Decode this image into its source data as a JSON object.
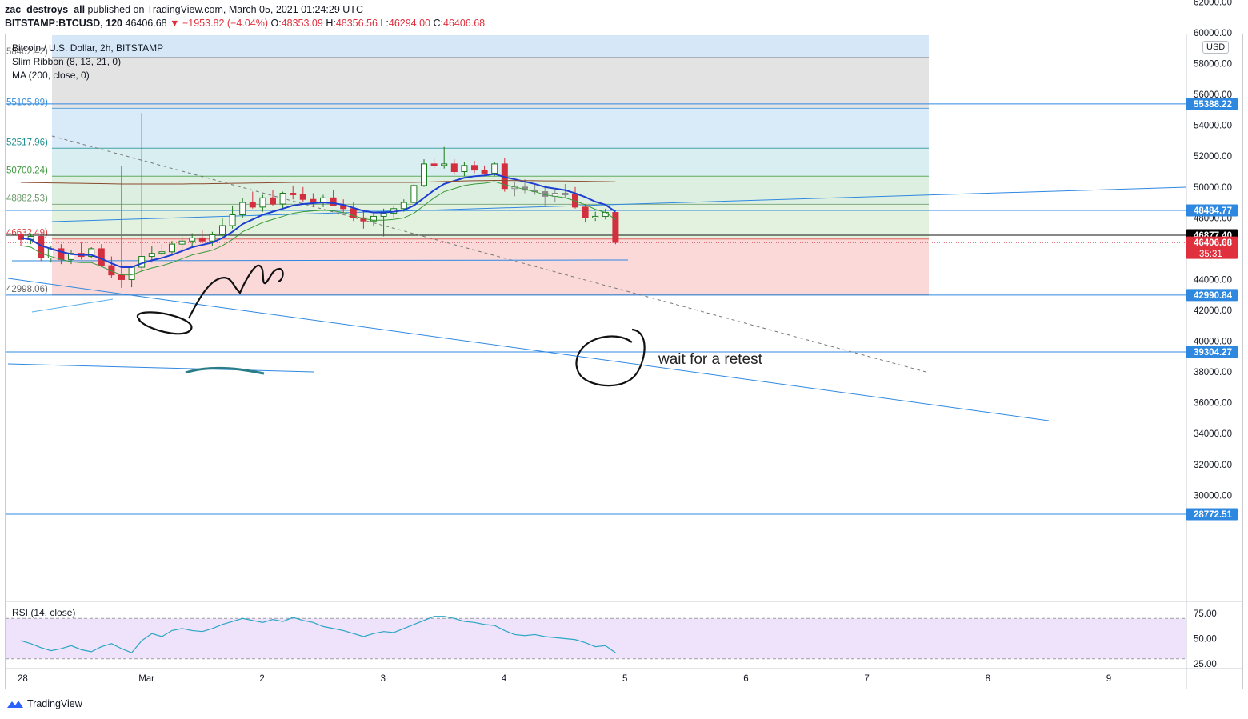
{
  "header": {
    "author": "zac_destroys_all",
    "published_text": "published on TradingView.com, March 05, 2021 01:24:29 UTC",
    "symbol_line": "BITSTAMP:BTCUSD, 120",
    "last": "46406.68",
    "change": "▼ −1953.82 (−4.04%)",
    "o_label": "O:",
    "o": "48353.09",
    "h_label": "H:",
    "h": "48356.56",
    "l_label": "L:",
    "l": "46294.00",
    "c_label": "C:",
    "c": "46406.68"
  },
  "legend": {
    "title": "Bitcoin / U.S. Dollar, 2h, BITSTAMP",
    "ribbon": "Slim Ribbon (8, 13, 21, 0)",
    "ma": "MA (200, close, 0)",
    "rsi": "RSI (14, close)"
  },
  "currency_button": "USD",
  "annotation": "wait for a retest",
  "footer": {
    "brand": "TradingView"
  },
  "colors": {
    "up": "#1e7a1e",
    "down": "#d32f3f",
    "neutral": "#8a8a8a",
    "trendline": "#2f88e0",
    "ribbon_fast": "#1c3fd1",
    "rsi": "#2aa7c4"
  },
  "chart_data": {
    "type": "candlestick",
    "yaxis": {
      "min": 27000,
      "max": 65000,
      "ticks": [
        {
          "v": 62000,
          "label": "62000.00"
        },
        {
          "v": 60000,
          "label": "60000.00"
        },
        {
          "v": 58000,
          "label": "58000.00"
        },
        {
          "v": 56000,
          "label": "56000.00"
        },
        {
          "v": 54000,
          "label": "54000.00"
        },
        {
          "v": 52000,
          "label": "52000.00"
        },
        {
          "v": 50000,
          "label": "50000.00"
        },
        {
          "v": 48000,
          "label": "48000.00"
        },
        {
          "v": 44000,
          "label": "44000.00"
        },
        {
          "v": 42000,
          "label": "42000.00"
        },
        {
          "v": 40000,
          "label": "40000.00"
        },
        {
          "v": 38000,
          "label": "38000.00"
        },
        {
          "v": 36000,
          "label": "36000.00"
        },
        {
          "v": 34000,
          "label": "34000.00"
        },
        {
          "v": 32000,
          "label": "32000.00"
        },
        {
          "v": 30000,
          "label": "30000.00"
        }
      ]
    },
    "xaxis": {
      "ticks": [
        {
          "t": 0,
          "label": "28"
        },
        {
          "t": 12,
          "label": "Mar"
        },
        {
          "t": 24,
          "label": "2"
        },
        {
          "t": 36,
          "label": "3"
        },
        {
          "t": 48,
          "label": "4"
        },
        {
          "t": 60,
          "label": "5"
        },
        {
          "t": 72,
          "label": "6"
        },
        {
          "t": 84,
          "label": "7"
        },
        {
          "t": 96,
          "label": "8"
        },
        {
          "t": 108,
          "label": "9"
        }
      ]
    },
    "price_tags": [
      {
        "v": 55388.22,
        "label": "55388.22",
        "kind": "line"
      },
      {
        "v": 48484.77,
        "label": "48484.77",
        "kind": "line"
      },
      {
        "v": 46877.4,
        "label": "46877.40",
        "kind": "dark"
      },
      {
        "v": 46406.68,
        "label": "46406.68",
        "kind": "last",
        "countdown": "35:31"
      },
      {
        "v": 42990.84,
        "label": "42990.84",
        "kind": "line"
      },
      {
        "v": 39304.27,
        "label": "39304.27",
        "kind": "line"
      },
      {
        "v": 28772.51,
        "label": "28772.51",
        "kind": "line"
      }
    ],
    "fib_levels": [
      {
        "v": 58402.42,
        "label": "58402.42)"
      },
      {
        "v": 55105.89,
        "label": "55105.89)"
      },
      {
        "v": 52517.96,
        "label": "52517.96)"
      },
      {
        "v": 50700.24,
        "label": "50700.24)"
      },
      {
        "v": 48882.53,
        "label": "48882.53)"
      },
      {
        "v": 46632.49,
        "label": "46632.49)"
      },
      {
        "v": 42998.06,
        "label": "42998.06)"
      }
    ],
    "candles": [
      [
        46900,
        47100,
        46200,
        46600
      ],
      [
        46600,
        47000,
        46300,
        46800
      ],
      [
        46800,
        47000,
        45200,
        45400
      ],
      [
        45400,
        46200,
        45100,
        46000
      ],
      [
        46000,
        46300,
        45000,
        45300
      ],
      [
        45300,
        45900,
        45000,
        45700
      ],
      [
        45700,
        46400,
        45300,
        45500
      ],
      [
        45500,
        46100,
        45400,
        46000
      ],
      [
        46000,
        46300,
        44800,
        44900
      ],
      [
        44900,
        45500,
        44100,
        44300
      ],
      [
        44300,
        45000,
        43600,
        44000
      ],
      [
        44000,
        44900,
        43500,
        44800
      ],
      [
        44800,
        54800,
        44500,
        45500
      ],
      [
        45500,
        46200,
        45100,
        45700
      ],
      [
        45700,
        46300,
        45400,
        45800
      ],
      [
        45800,
        46500,
        45600,
        46300
      ],
      [
        46300,
        46800,
        45900,
        46500
      ],
      [
        46500,
        47000,
        46200,
        46700
      ],
      [
        46700,
        47200,
        46400,
        46500
      ],
      [
        46500,
        47100,
        46200,
        46900
      ],
      [
        46900,
        48000,
        46800,
        47500
      ],
      [
        47500,
        48800,
        47300,
        48200
      ],
      [
        48200,
        49300,
        48000,
        49000
      ],
      [
        49000,
        49700,
        48600,
        48700
      ],
      [
        48700,
        49500,
        48400,
        49300
      ],
      [
        49300,
        49800,
        48800,
        48900
      ],
      [
        48900,
        49700,
        48600,
        49600
      ],
      [
        49600,
        50100,
        49200,
        49500
      ],
      [
        49500,
        50000,
        49000,
        49200
      ],
      [
        49200,
        49600,
        48700,
        49000
      ],
      [
        49000,
        49500,
        48700,
        49300
      ],
      [
        49300,
        49800,
        48900,
        48800
      ],
      [
        48800,
        49200,
        48300,
        48600
      ],
      [
        48600,
        49000,
        47800,
        48000
      ],
      [
        48000,
        48500,
        47300,
        47800
      ],
      [
        47800,
        48300,
        47500,
        48100
      ],
      [
        48100,
        48600,
        46800,
        48300
      ],
      [
        48300,
        48800,
        48000,
        48600
      ],
      [
        48600,
        49200,
        48400,
        49000
      ],
      [
        49000,
        50200,
        48800,
        50100
      ],
      [
        50100,
        51800,
        50000,
        51500
      ],
      [
        51500,
        51900,
        51200,
        51400
      ],
      [
        51400,
        52600,
        51200,
        51500
      ],
      [
        51500,
        51800,
        50800,
        51000
      ],
      [
        51000,
        51600,
        50700,
        51400
      ],
      [
        51400,
        51700,
        50900,
        51100
      ],
      [
        51100,
        51400,
        50800,
        50900
      ],
      [
        50900,
        51600,
        50700,
        51500
      ],
      [
        51500,
        51900,
        49700,
        49900
      ],
      [
        49900,
        50300,
        49400,
        50000
      ],
      [
        50000,
        50500,
        49600,
        49800
      ],
      [
        49800,
        50200,
        49500,
        49700
      ],
      [
        49700,
        50100,
        48800,
        49400
      ],
      [
        49400,
        49800,
        49000,
        49600
      ],
      [
        49600,
        50200,
        49300,
        49500
      ],
      [
        49500,
        50000,
        48600,
        48700
      ],
      [
        48700,
        48900,
        47700,
        48000
      ],
      [
        48000,
        48400,
        47800,
        48100
      ],
      [
        48100,
        48600,
        47900,
        48353
      ],
      [
        48353,
        48357,
        46294,
        46407
      ]
    ],
    "series": [
      {
        "name": "Slim Ribbon (8, 13, 21, 0)",
        "values": [
          46700,
          46600,
          46200,
          46000,
          45800,
          45650,
          45600,
          45600,
          45350,
          45050,
          44800,
          44800,
          45050,
          45250,
          45400,
          45600,
          45850,
          46100,
          46250,
          46400,
          46700,
          47100,
          47600,
          47900,
          48200,
          48400,
          48600,
          48800,
          48900,
          48950,
          49000,
          48950,
          48850,
          48650,
          48450,
          48350,
          48350,
          48400,
          48500,
          48800,
          49300,
          49800,
          50200,
          50400,
          50600,
          50700,
          50750,
          50850,
          50650,
          50500,
          50350,
          50200,
          50000,
          49900,
          49800,
          49600,
          49350,
          49050,
          48850,
          48400
        ]
      },
      {
        "name": "MA (200, close, 0)",
        "values": [
          50300,
          50290,
          50280,
          50270,
          50260,
          50250,
          50240,
          50230,
          50220,
          50210,
          50200,
          50200,
          50200,
          50200,
          50200,
          50200,
          50200,
          50210,
          50210,
          50220,
          50230,
          50240,
          50250,
          50260,
          50270,
          50280,
          50290,
          50300,
          50300,
          50300,
          50300,
          50300,
          50300,
          50300,
          50300,
          50300,
          50300,
          50300,
          50300,
          50300,
          50320,
          50340,
          50360,
          50380,
          50400,
          50410,
          50420,
          50430,
          50430,
          50420,
          50420,
          50410,
          50400,
          50400,
          50390,
          50380,
          50370,
          50360,
          50350,
          50340
        ]
      }
    ],
    "rsi": {
      "label": "RSI (14, close)",
      "ticks": [
        {
          "v": 75,
          "label": "75.00"
        },
        {
          "v": 50,
          "label": "50.00"
        },
        {
          "v": 25,
          "label": "25.00"
        }
      ],
      "bands": [
        70,
        30
      ],
      "values": [
        48,
        45,
        41,
        38,
        40,
        43,
        39,
        37,
        42,
        45,
        40,
        36,
        48,
        55,
        52,
        58,
        60,
        58,
        57,
        60,
        64,
        67,
        70,
        68,
        66,
        69,
        67,
        71,
        68,
        66,
        62,
        60,
        58,
        55,
        52,
        55,
        57,
        56,
        60,
        64,
        68,
        72,
        72,
        70,
        67,
        66,
        64,
        63,
        58,
        54,
        53,
        54,
        52,
        51,
        50,
        49,
        46,
        42,
        43,
        36
      ]
    }
  }
}
